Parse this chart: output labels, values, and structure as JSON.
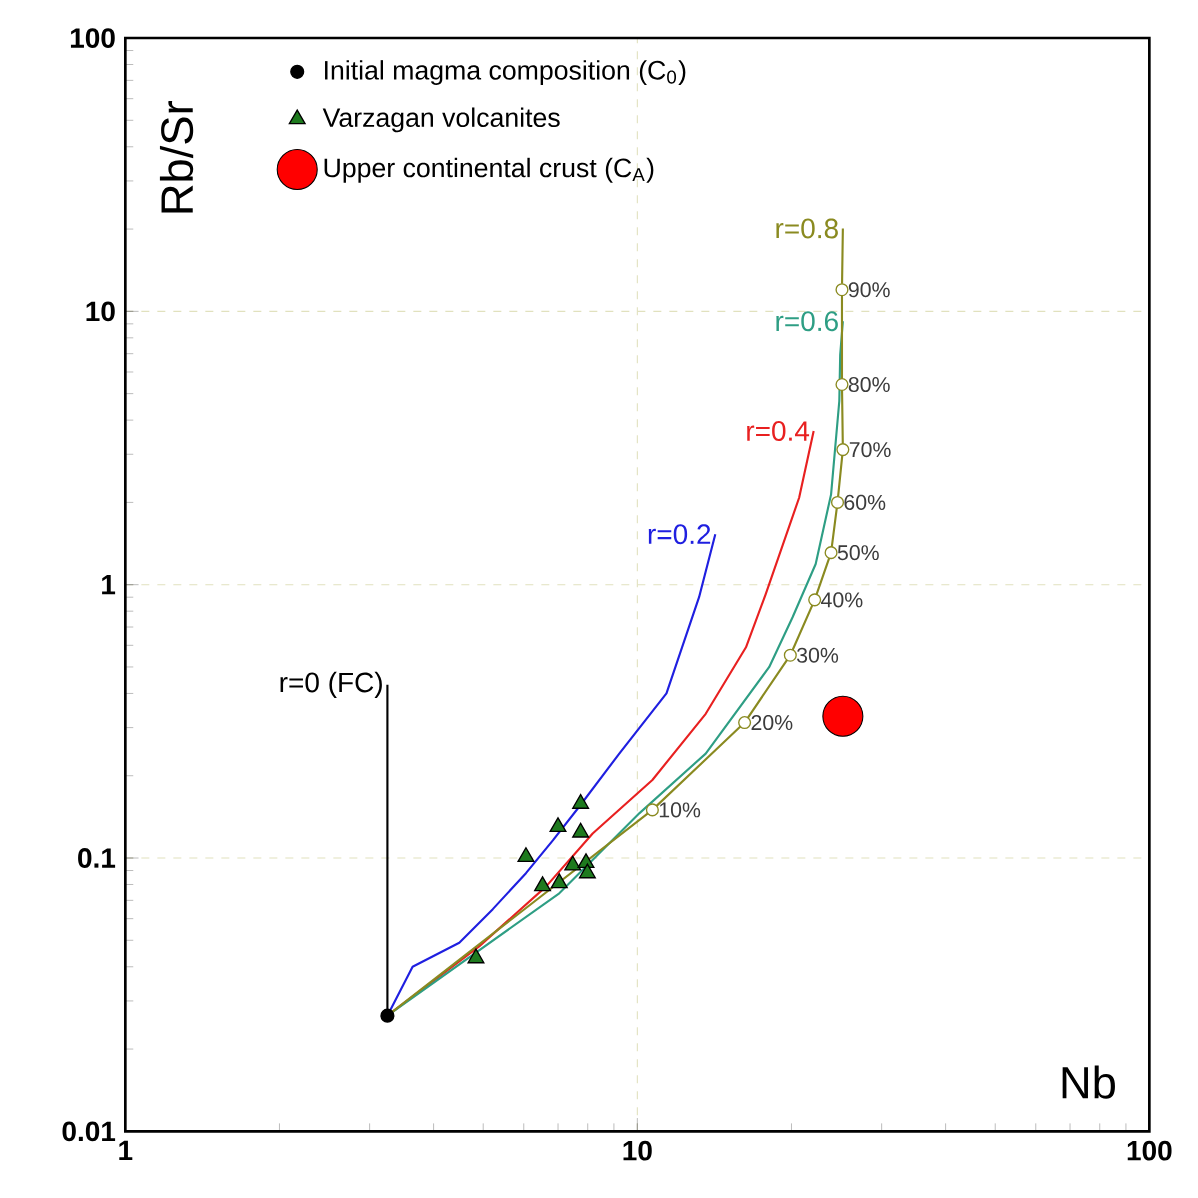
{
  "chart_data": {
    "type": "scatter",
    "xlabel": "Nb",
    "ylabel": "Rb/Sr",
    "log": "xy",
    "grid": true,
    "legend": "top left",
    "xlim": [
      1,
      100
    ],
    "ylim": [
      0.01,
      100
    ],
    "xticks": [
      1,
      10,
      100
    ],
    "yticks": [
      0.01,
      0.1,
      1,
      10,
      100
    ],
    "series": [
      {
        "name": "r=0 (FC)",
        "type": "line",
        "color": "#000000",
        "x": [
          3.25,
          3.25
        ],
        "values": [
          0.0265,
          0.43
        ]
      },
      {
        "name": "r=0.2",
        "type": "line",
        "color": "#1f1fe0",
        "x": [
          3.25,
          3.64,
          4.49,
          5.22,
          6.06,
          6.84,
          7.7,
          9.22,
          11.4,
          13.2,
          14.2
        ],
        "values": [
          0.0265,
          0.04,
          0.049,
          0.065,
          0.088,
          0.116,
          0.154,
          0.241,
          0.4,
          0.9,
          1.53
        ]
      },
      {
        "name": "r=0.4",
        "type": "line",
        "color": "#e82020",
        "x": [
          3.25,
          4.91,
          6.63,
          8.18,
          10.7,
          13.6,
          16.3,
          17.8,
          20.7,
          22.1
        ],
        "values": [
          0.0265,
          0.0475,
          0.0786,
          0.123,
          0.193,
          0.337,
          0.59,
          0.92,
          2.08,
          3.65
        ]
      },
      {
        "name": "r=0.6",
        "type": "line",
        "color": "#2e9e84",
        "x": [
          3.25,
          7.04,
          10.1,
          13.6,
          18.1,
          20.1,
          22.3,
          23.9,
          24.8,
          24.9,
          25.2
        ],
        "values": [
          0.0265,
          0.0743,
          0.146,
          0.241,
          0.5,
          0.76,
          1.19,
          2.14,
          4.7,
          6.94,
          9.2
        ]
      },
      {
        "name": "r=0.8",
        "type": "line",
        "color": "#8a8a20",
        "x": [
          3.25,
          10.7,
          16.2,
          19.9,
          22.2,
          23.9,
          24.6,
          25.2,
          25.1,
          25.1,
          25.2
        ],
        "values": [
          0.0265,
          0.15,
          0.313,
          0.552,
          0.88,
          1.31,
          2.0,
          3.12,
          5.4,
          12.0,
          20.1
        ]
      },
      {
        "color": "#8a8a20",
        "marker": "circle",
        "x": [
          10.7,
          16.2,
          19.9,
          22.2,
          23.9,
          24.6,
          25.2,
          25.1,
          25.1
        ],
        "values": [
          0.15,
          0.313,
          0.552,
          0.88,
          1.31,
          2.0,
          3.12,
          5.4,
          12.0
        ]
      },
      {
        "name": "Initial magma composition (C$_{0}$)",
        "color": "#000000",
        "marker": "circle",
        "x": [
          3.25
        ],
        "values": [
          0.0265
        ]
      },
      {
        "name": "Varzagan volcanites",
        "color": "#1e7a1e",
        "marker": "triangle",
        "x": [
          4.84,
          6.06,
          6.53,
          7.0,
          7.04,
          7.48,
          7.75,
          7.75,
          7.94,
          7.99
        ],
        "values": [
          0.043,
          0.101,
          0.079,
          0.13,
          0.081,
          0.094,
          0.158,
          0.124,
          0.096,
          0.088
        ]
      },
      {
        "name": "Upper continental crust (C$_{A}$)",
        "type": "bubble",
        "color": "#ff0000",
        "marker": "circle",
        "x": [
          25.2
        ],
        "values": [
          0.33
        ],
        "sizes": [
          1
        ]
      }
    ],
    "annotations": [
      {
        "text": "10%",
        "x": 10.7,
        "y": 0.15
      },
      {
        "text": "20%",
        "x": 16.2,
        "y": 0.313
      },
      {
        "text": "30%",
        "x": 19.9,
        "y": 0.552
      },
      {
        "text": "40%",
        "x": 22.2,
        "y": 0.88
      },
      {
        "text": "50%",
        "x": 23.9,
        "y": 1.31
      },
      {
        "text": "60%",
        "x": 24.6,
        "y": 2.0
      },
      {
        "text": "70%",
        "x": 25.2,
        "y": 3.12
      },
      {
        "text": "80%",
        "x": 25.1,
        "y": 5.4
      },
      {
        "text": "90%",
        "x": 25.1,
        "y": 12.0
      }
    ]
  }
}
